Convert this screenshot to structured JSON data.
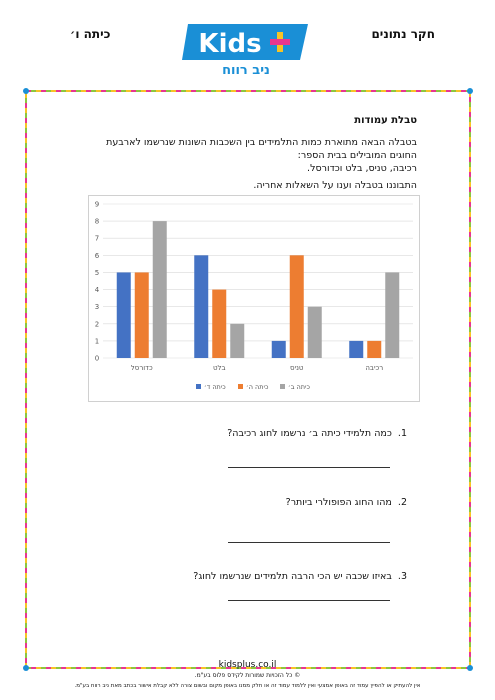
{
  "header": {
    "subject": "חקר נתונים",
    "grade": "כיתה ו׳",
    "logo": "Kids",
    "logo_subtitle": "ניב רווח"
  },
  "worksheet": {
    "title": "טבלת עמודות",
    "intro": [
      "בטבלה הבאה מתוארת כמות התלמידים בין השכבות השונות שנרשמו לארבעת",
      "החוגים המובילים בבית הספר:",
      "רכיבה, טניס, בלט וכדורסל."
    ],
    "instruction": "התבוננו בטבלה וענו על השאלות אחריה."
  },
  "chart_data": {
    "type": "bar",
    "categories": [
      "כדורסל",
      "בלט",
      "טניס",
      "רכיבה"
    ],
    "series": [
      {
        "name": "כיתה ד׳",
        "color": "#4472c4",
        "values": [
          5,
          6,
          1,
          1
        ]
      },
      {
        "name": "כיתה ה׳",
        "color": "#ed7d31",
        "values": [
          5,
          4,
          6,
          1
        ]
      },
      {
        "name": "כיתה ב׳",
        "color": "#a5a5a5",
        "values": [
          8,
          2,
          3,
          5
        ]
      }
    ],
    "ylim": [
      0,
      9
    ],
    "yticks": [
      0,
      1,
      2,
      3,
      4,
      5,
      6,
      7,
      8,
      9
    ],
    "grid": true,
    "legend": "bottom"
  },
  "questions": [
    {
      "number": "1.",
      "text": "כמה תלמידי כיתה ב׳ נרשמו לחוג רכיבה?"
    },
    {
      "number": "2.",
      "text": "מהו החוג הפופולרי ביותר?"
    },
    {
      "number": "3.",
      "text": "באיזו שכבה יש הכי הרבה תלמידים שנרשמו לחוג?"
    }
  ],
  "footer": {
    "site": "kidsplus.co.il",
    "copyright": "© כל הזכויות שמורות לקידס פלוס בע\"מ.",
    "notice": "אין להעתיק או להפיץ עמוד זה באופן אמצעי ואין ללמוד עמוד זה או חלק ממנו באופן מקום ובשום צורה ללא קבלת אישור בכתב מאת ניב רווח בע\"מ."
  }
}
